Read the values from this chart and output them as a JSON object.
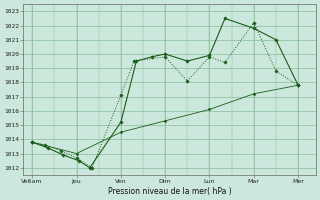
{
  "xlabel": "Pression niveau de la mer( hPa )",
  "bg_color": "#cce8dc",
  "grid_color": "#88bb99",
  "line_color": "#1a5c1a",
  "xtick_labels": [
    "Ve6am",
    "Jeu",
    "Ven",
    "Dim",
    "Lun",
    "Mar",
    "Mer"
  ],
  "xtick_positions": [
    0,
    1,
    2,
    3,
    4,
    5,
    6
  ],
  "ylim": [
    1011.5,
    1023.5
  ],
  "ytick_vals": [
    1012,
    1013,
    1014,
    1015,
    1016,
    1017,
    1018,
    1019,
    1020,
    1021,
    1022,
    1023
  ],
  "line1_x": [
    0.0,
    0.3,
    0.65,
    1.0,
    1.35,
    2.0,
    2.3,
    3.0,
    3.5,
    4.0,
    4.35,
    5.0,
    5.5,
    6.0
  ],
  "line1_y": [
    1013.8,
    1013.6,
    1013.2,
    1012.7,
    1012.0,
    1017.1,
    1019.5,
    1019.8,
    1018.1,
    1019.8,
    1019.4,
    1022.2,
    1018.8,
    1017.8
  ],
  "line2_x": [
    0.0,
    0.35,
    0.7,
    1.05,
    1.3,
    2.0,
    2.35,
    2.7,
    3.0,
    3.5,
    4.0,
    4.35,
    5.0,
    5.5,
    6.0
  ],
  "line2_y": [
    1013.8,
    1013.4,
    1012.9,
    1012.5,
    1012.0,
    1015.2,
    1019.5,
    1019.8,
    1020.0,
    1019.5,
    1019.9,
    1022.5,
    1021.8,
    1021.0,
    1017.8
  ],
  "line3_x": [
    0.0,
    1.0,
    2.0,
    3.0,
    4.0,
    5.0,
    6.0
  ],
  "line3_y": [
    1013.8,
    1013.0,
    1014.5,
    1015.3,
    1016.1,
    1017.2,
    1017.8
  ],
  "line1_style": "dotted",
  "line2_style": "solid",
  "line3_style": "solid"
}
